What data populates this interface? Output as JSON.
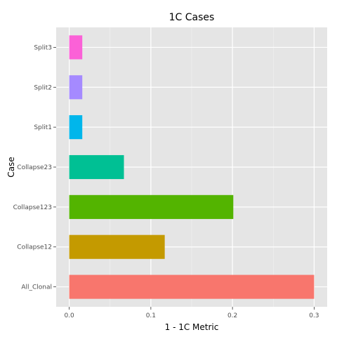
{
  "chart_data": {
    "type": "bar",
    "orientation": "horizontal",
    "title": "1C Cases",
    "xlabel": "1 - 1C Metric",
    "ylabel": "Case",
    "categories": [
      "All_Clonal",
      "Collapse12",
      "Collapse123",
      "Collapse23",
      "Split1",
      "Split2",
      "Split3"
    ],
    "values": [
      0.3,
      0.117,
      0.201,
      0.067,
      0.016,
      0.016,
      0.016
    ],
    "colors": [
      "#F8766D",
      "#C49A00",
      "#53B400",
      "#00C094",
      "#00B6EB",
      "#A58AFF",
      "#FB61D7"
    ],
    "xlim": [
      -0.016,
      0.316
    ],
    "xticks": [
      "0.0",
      "0.1",
      "0.2",
      "0.3"
    ],
    "xtick_values": [
      0,
      0.1,
      0.2,
      0.3
    ],
    "grid": true,
    "legend": "none",
    "panel_background": "#E5E5E5",
    "grid_color": "#FFFFFF"
  }
}
